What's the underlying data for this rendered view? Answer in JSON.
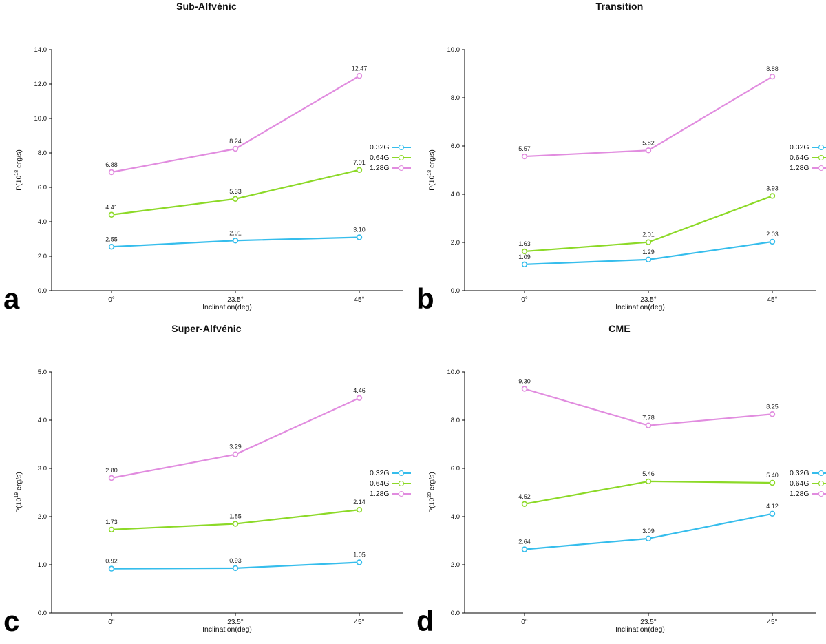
{
  "legend": {
    "items": [
      {
        "label": "0.32G",
        "color": "#35BDEC"
      },
      {
        "label": "0.64G",
        "color": "#8CD927"
      },
      {
        "label": "1.28G",
        "color": "#E18CDF"
      }
    ]
  },
  "chart_data": [
    {
      "type": "line",
      "panel_letter": "a",
      "title": "Sub-Alfvénic",
      "x": [
        "0°",
        "23.5°",
        "45°"
      ],
      "xlabel": "Inclination(deg)",
      "ylabel_prefix": "P(10",
      "ylabel_exponent": "18",
      "ylabel_suffix": " erg/s)",
      "ylim": [
        0,
        14
      ],
      "ytick_labels": [
        "0.0",
        "2.0",
        "4.0",
        "6.0",
        "8.0",
        "10.0",
        "12.0",
        "14.0"
      ],
      "grid": false,
      "legend_position": "right",
      "series": [
        {
          "name": "0.32G",
          "color": "#35BDEC",
          "values": [
            2.55,
            2.91,
            3.1
          ],
          "labels": [
            "2.55",
            "2.91",
            "3.10"
          ]
        },
        {
          "name": "0.64G",
          "color": "#8CD927",
          "values": [
            4.41,
            5.33,
            7.01
          ],
          "labels": [
            "4.41",
            "5.33",
            "7.01"
          ]
        },
        {
          "name": "1.28G",
          "color": "#E18CDF",
          "values": [
            6.88,
            8.24,
            12.47
          ],
          "labels": [
            "6.88",
            "8.24",
            "12.47"
          ]
        }
      ]
    },
    {
      "type": "line",
      "panel_letter": "b",
      "title": "Transition",
      "x": [
        "0°",
        "23.5°",
        "45°"
      ],
      "xlabel": "Inclination(deg)",
      "ylabel_prefix": "P(10",
      "ylabel_exponent": "18",
      "ylabel_suffix": " erg/s)",
      "ylim": [
        0,
        10
      ],
      "ytick_labels": [
        "0.0",
        "2.0",
        "4.0",
        "6.0",
        "8.0",
        "10.0"
      ],
      "grid": false,
      "legend_position": "right",
      "series": [
        {
          "name": "0.32G",
          "color": "#35BDEC",
          "values": [
            1.09,
            1.29,
            2.03
          ],
          "labels": [
            "1.09",
            "1.29",
            "2.03"
          ]
        },
        {
          "name": "0.64G",
          "color": "#8CD927",
          "values": [
            1.63,
            2.01,
            3.93
          ],
          "labels": [
            "1.63",
            "2.01",
            "3.93"
          ]
        },
        {
          "name": "1.28G",
          "color": "#E18CDF",
          "values": [
            5.57,
            5.82,
            8.88
          ],
          "labels": [
            "5.57",
            "5.82",
            "8.88"
          ]
        }
      ]
    },
    {
      "type": "line",
      "panel_letter": "c",
      "title": "Super-Alfvénic",
      "x": [
        "0°",
        "23.5°",
        "45°"
      ],
      "xlabel": "Inclination(deg)",
      "ylabel_prefix": "P(10",
      "ylabel_exponent": "19",
      "ylabel_suffix": " erg/s)",
      "ylim": [
        0,
        5
      ],
      "ytick_labels": [
        "0.0",
        "1.0",
        "2.0",
        "3.0",
        "4.0",
        "5.0"
      ],
      "grid": false,
      "legend_position": "right",
      "series": [
        {
          "name": "0.32G",
          "color": "#35BDEC",
          "values": [
            0.92,
            0.93,
            1.05
          ],
          "labels": [
            "0.92",
            "0.93",
            "1.05"
          ]
        },
        {
          "name": "0.64G",
          "color": "#8CD927",
          "values": [
            1.73,
            1.85,
            2.14
          ],
          "labels": [
            "1.73",
            "1.85",
            "2.14"
          ]
        },
        {
          "name": "1.28G",
          "color": "#E18CDF",
          "values": [
            2.8,
            3.29,
            4.46
          ],
          "labels": [
            "2.80",
            "3.29",
            "4.46"
          ]
        }
      ]
    },
    {
      "type": "line",
      "panel_letter": "d",
      "title": "CME",
      "x": [
        "0°",
        "23.5°",
        "45°"
      ],
      "xlabel": "Inclination(deg)",
      "ylabel_prefix": "P(10",
      "ylabel_exponent": "20",
      "ylabel_suffix": " erg/s)",
      "ylim": [
        0,
        10
      ],
      "ytick_labels": [
        "0.0",
        "2.0",
        "4.0",
        "6.0",
        "8.0",
        "10.0"
      ],
      "grid": false,
      "legend_position": "right",
      "series": [
        {
          "name": "0.32G",
          "color": "#35BDEC",
          "values": [
            2.64,
            3.09,
            4.12
          ],
          "labels": [
            "2.64",
            "3.09",
            "4.12"
          ]
        },
        {
          "name": "0.64G",
          "color": "#8CD927",
          "values": [
            4.52,
            5.46,
            5.4
          ],
          "labels": [
            "4.52",
            "5.46",
            "5.40"
          ]
        },
        {
          "name": "1.28G",
          "color": "#E18CDF",
          "values": [
            9.3,
            7.78,
            8.25
          ],
          "labels": [
            "9.30",
            "7.78",
            "8.25"
          ]
        }
      ]
    }
  ]
}
